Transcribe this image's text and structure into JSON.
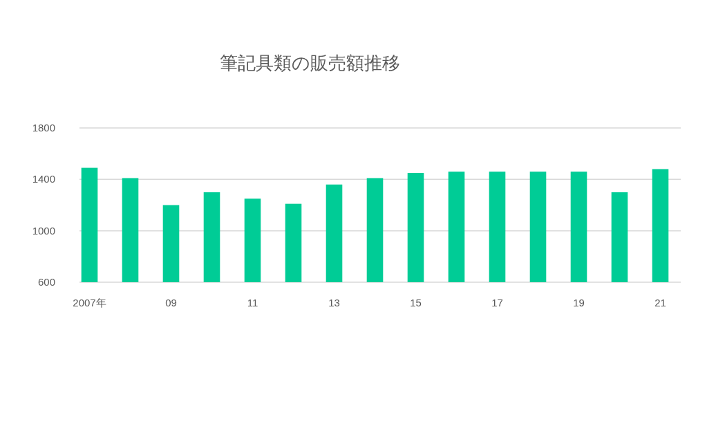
{
  "chart_data": {
    "type": "bar",
    "title": "筆記具類の販売額推移",
    "categories": [
      "2007年",
      null,
      "09",
      null,
      "11",
      null,
      "13",
      null,
      "15",
      null,
      "17",
      null,
      "19",
      null,
      "21"
    ],
    "values": [
      1490,
      1410,
      1200,
      1300,
      1250,
      1210,
      1360,
      1410,
      1450,
      1460,
      1460,
      1460,
      1460,
      1300,
      1480
    ],
    "color": "#00cc96",
    "ylim": [
      600,
      1800
    ],
    "yticks": [
      600,
      1000,
      1400,
      1800
    ],
    "grid": "y"
  }
}
